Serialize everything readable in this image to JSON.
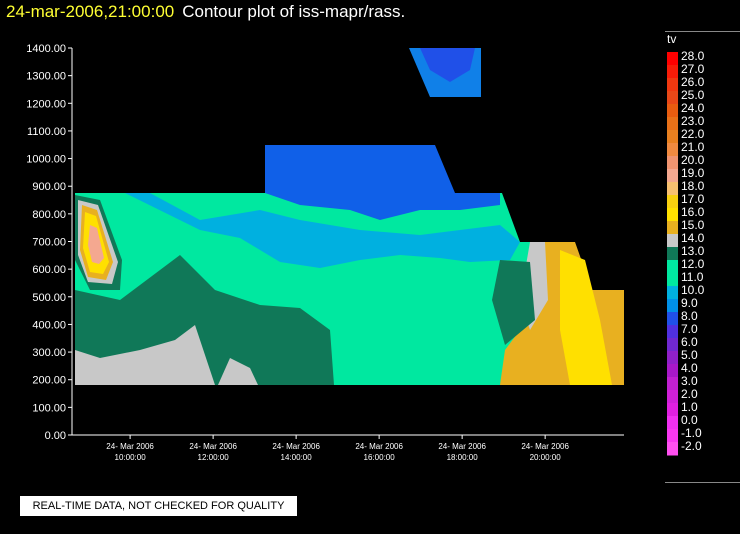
{
  "header": {
    "timestamp": "24-mar-2006,21:00:00",
    "title": "Contour plot of iss-mapr/rass."
  },
  "notice": "REAL-TIME DATA, NOT CHECKED FOR QUALITY",
  "chart_data": {
    "type": "contour",
    "variable": "tv",
    "y_ticks": [
      "1400.00",
      "1300.00",
      "1200.00",
      "1100.00",
      "1000.00",
      "900.00",
      "800.00",
      "700.00",
      "600.00",
      "500.00",
      "400.00",
      "300.00",
      "200.00",
      "100.00",
      "0.00"
    ],
    "ylim": [
      0,
      1400
    ],
    "x_ticks": [
      {
        "date": "24- Mar 2006",
        "time": "10:00:00"
      },
      {
        "date": "24- Mar 2006",
        "time": "12:00:00"
      },
      {
        "date": "24- Mar 2006",
        "time": "14:00:00"
      },
      {
        "date": "24- Mar 2006",
        "time": "16:00:00"
      },
      {
        "date": "24- Mar 2006",
        "time": "18:00:00"
      },
      {
        "date": "24- Mar 2006",
        "time": "20:00:00"
      }
    ],
    "xlim_hours": [
      8.6,
      21.9
    ],
    "colorbar": {
      "labels": [
        "28.0",
        "27.0",
        "26.0",
        "25.0",
        "24.0",
        "23.0",
        "22.0",
        "21.0",
        "20.0",
        "19.0",
        "18.0",
        "17.0",
        "16.0",
        "15.0",
        "14.0",
        "13.0",
        "12.0",
        "11.0",
        "10.0",
        "9.0",
        "8.0",
        "7.0",
        "6.0",
        "5.0",
        "4.0",
        "3.0",
        "2.0",
        "1.0",
        "0.0",
        "-1.0",
        "-2.0"
      ],
      "colors": [
        "#ff0000",
        "#f81c08",
        "#f03810",
        "#e84818",
        "#e85c10",
        "#e87018",
        "#e88020",
        "#f08a40",
        "#f09470",
        "#f4a890",
        "#f7c070",
        "#f8d010",
        "#ffe000",
        "#e8b020",
        "#c8c8c8",
        "#107858",
        "#00e8a0",
        "#00e8a0",
        "#00b0e0",
        "#0090e8",
        "#2050e8",
        "#5030e0",
        "#7028d0",
        "#9020c8",
        "#a818c8",
        "#c020d0",
        "#d020d8",
        "#e020e0",
        "#f030f0",
        "#f838f0",
        "#ff50f0"
      ]
    },
    "regions": [
      {
        "level": "12.0-13.0",
        "color": "#00e8a0",
        "hours": [
          8.6,
          8.6,
          20.7,
          21.9,
          21.9
        ],
        "heights": [
          180,
          880,
          880,
          520,
          180
        ]
      },
      {
        "level": "8.0-9.0",
        "color": "#0050e0",
        "hours": [
          13.2,
          13.2,
          17.3,
          17.3
        ],
        "heights": [
          880,
          1050,
          1050,
          880
        ]
      },
      {
        "level": "8.0-9.0",
        "color": "#1080e8",
        "hours": [
          16.4,
          17.2,
          17.9,
          17.9
        ],
        "heights": [
          1400,
          1400,
          1230,
          1230
        ]
      }
    ]
  }
}
